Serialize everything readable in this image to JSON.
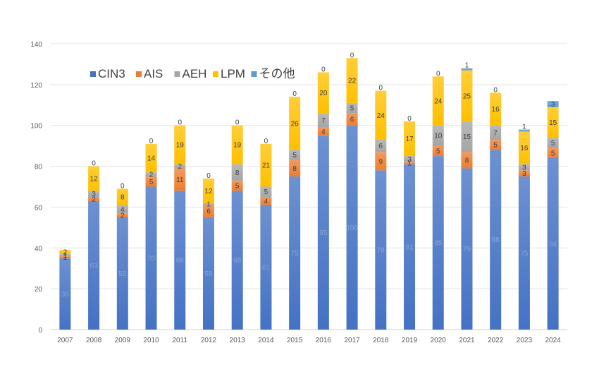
{
  "chart_data": {
    "type": "bar",
    "stacked": true,
    "title": "",
    "xlabel": "",
    "ylabel": "",
    "ylim": [
      0,
      140
    ],
    "y_ticks": [
      0,
      20,
      40,
      60,
      80,
      100,
      120,
      140
    ],
    "grid": true,
    "legend_position": "top-left",
    "categories": [
      "2007",
      "2008",
      "2009",
      "2010",
      "2011",
      "2012",
      "2013",
      "2014",
      "2015",
      "2016",
      "2017",
      "2018",
      "2019",
      "2020",
      "2021",
      "2022",
      "2023",
      "2024"
    ],
    "series": [
      {
        "name": "CIN3",
        "color": "#4472C4",
        "values": [
          35,
          63,
          55,
          70,
          68,
          55,
          68,
          61,
          75,
          95,
          100,
          78,
          81,
          85,
          79,
          88,
          75,
          84
        ]
      },
      {
        "name": "AIS",
        "color": "#ED7D31",
        "values": [
          1,
          2,
          2,
          5,
          11,
          6,
          5,
          4,
          8,
          4,
          6,
          9,
          1,
          5,
          8,
          5,
          3,
          5
        ]
      },
      {
        "name": "AEH",
        "color": "#A5A5A5",
        "values": [
          1,
          3,
          4,
          2,
          2,
          1,
          8,
          5,
          5,
          7,
          5,
          6,
          3,
          10,
          15,
          7,
          3,
          5
        ]
      },
      {
        "name": "LPM",
        "color": "#FFC000",
        "values": [
          2,
          12,
          8,
          14,
          19,
          12,
          19,
          21,
          26,
          20,
          22,
          24,
          17,
          24,
          25,
          16,
          16,
          15
        ]
      },
      {
        "name": "その他",
        "color": "#5B9BD5",
        "values": [
          0,
          0,
          0,
          0,
          0,
          0,
          0,
          0,
          0,
          0,
          0,
          0,
          0,
          0,
          1,
          0,
          1,
          3
        ]
      }
    ]
  }
}
